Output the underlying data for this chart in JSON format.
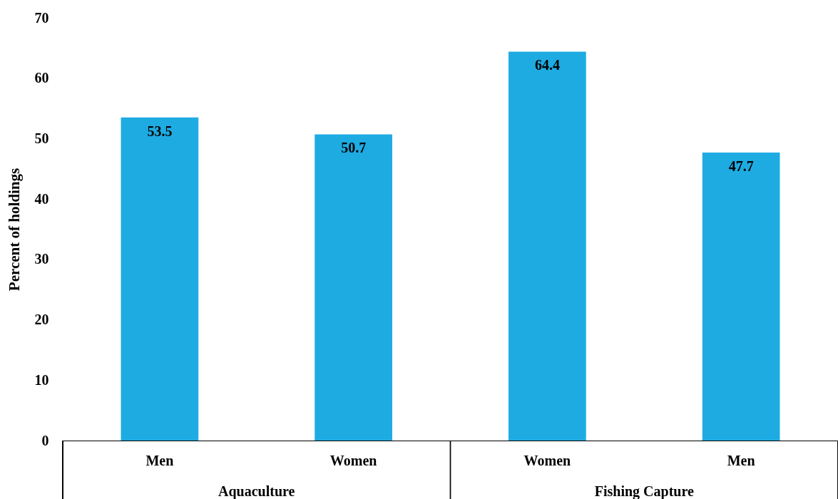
{
  "chart_data": {
    "type": "bar",
    "ylabel": "Percent of holdings",
    "categories": [
      "Men",
      "Women",
      "Women",
      "Men"
    ],
    "values": [
      53.5,
      50.7,
      64.4,
      47.7
    ],
    "color": "#1eabe2",
    "ylim": [
      0,
      70
    ],
    "yticks": [
      0,
      10,
      20,
      30,
      40,
      50,
      60,
      70
    ],
    "grid": false,
    "data_labels": true,
    "annotations": [
      "Aquaculture",
      "Fishing Capture"
    ]
  }
}
